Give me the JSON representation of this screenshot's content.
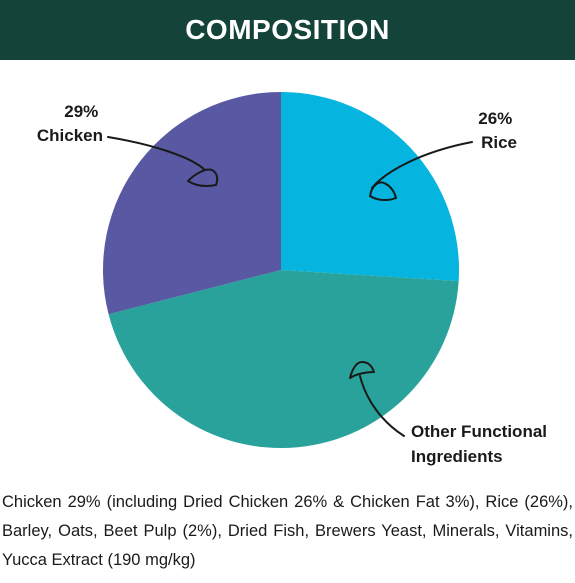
{
  "header": {
    "title": "COMPOSITION"
  },
  "chart_data": {
    "type": "pie",
    "title": "",
    "slices": [
      {
        "percent_label": "26%",
        "name": "Rice",
        "value": 26,
        "color": "#06b4e0"
      },
      {
        "percent_label": "",
        "name": "Other Functional Ingredients",
        "name_lines": [
          "Other Functional",
          "Ingredients"
        ],
        "value": 45,
        "color": "#28a29b"
      },
      {
        "percent_label": "29%",
        "name": "Chicken",
        "value": 29,
        "color": "#5858a3"
      }
    ],
    "start_angle_deg": 0,
    "direction": "clockwise"
  },
  "composition": {
    "text": "Chicken 29% (including Dried Chicken 26% & Chicken Fat 3%), Rice (26%), Barley, Oats, Beet Pulp (2%), Dried Fish, Brewers Yeast, Minerals, Vitamins, Yucca Extract (190 mg/kg)"
  }
}
